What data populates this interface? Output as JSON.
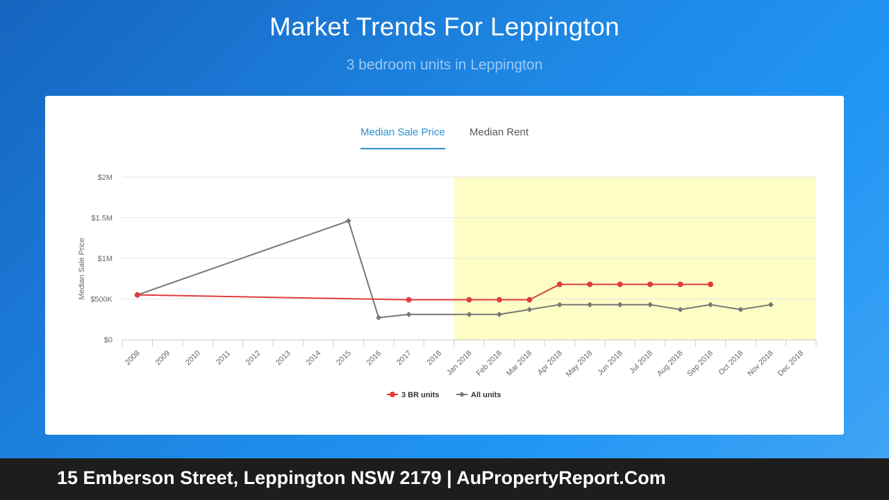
{
  "header": {
    "title": "Market Trends For Leppington",
    "subtitle": "3 bedroom units in Leppington"
  },
  "tabs": [
    {
      "label": "Median Sale Price",
      "active": true
    },
    {
      "label": "Median Rent",
      "active": false
    }
  ],
  "footer": {
    "text": "15 Emberson Street, Leppington NSW 2179 | AuPropertyReport.Com"
  },
  "colors": {
    "series_3br": "#e03c3c",
    "series_all": "#777777",
    "highlight_band": "#fdfdc6",
    "tab_active": "#2a8fd1"
  },
  "chart_data": {
    "type": "line",
    "ylabel": "Median Sale Price",
    "ylim": [
      0,
      2000000
    ],
    "y_ticks": [
      {
        "value": 0,
        "label": "$0"
      },
      {
        "value": 500000,
        "label": "$500K"
      },
      {
        "value": 1000000,
        "label": "$1M"
      },
      {
        "value": 1500000,
        "label": "$1.5M"
      },
      {
        "value": 2000000,
        "label": "$2M"
      }
    ],
    "categories": [
      "2008",
      "2009",
      "2010",
      "2011",
      "2012",
      "2013",
      "2014",
      "2015",
      "2016",
      "2017",
      "2018",
      "Jan 2018",
      "Feb 2018",
      "Mar 2018",
      "Apr 2018",
      "May 2018",
      "Jun 2018",
      "Jul 2018",
      "Aug 2018",
      "Sep 2018",
      "Oct 2018",
      "Nov 2018",
      "Dec 2018"
    ],
    "highlight_range": [
      "Jan 2018",
      "Dec 2018"
    ],
    "grid": true,
    "legend_position": "bottom-center",
    "series": [
      {
        "name": "3 BR units",
        "marker": "circle",
        "values": [
          550000,
          null,
          null,
          null,
          null,
          null,
          null,
          null,
          null,
          490000,
          null,
          490000,
          490000,
          490000,
          680000,
          680000,
          680000,
          680000,
          680000,
          680000,
          null,
          null,
          null
        ]
      },
      {
        "name": "All units",
        "marker": "diamond",
        "values": [
          550000,
          null,
          null,
          null,
          null,
          null,
          null,
          1460000,
          270000,
          310000,
          null,
          310000,
          310000,
          370000,
          430000,
          430000,
          430000,
          430000,
          370000,
          430000,
          370000,
          430000,
          null
        ]
      }
    ]
  }
}
